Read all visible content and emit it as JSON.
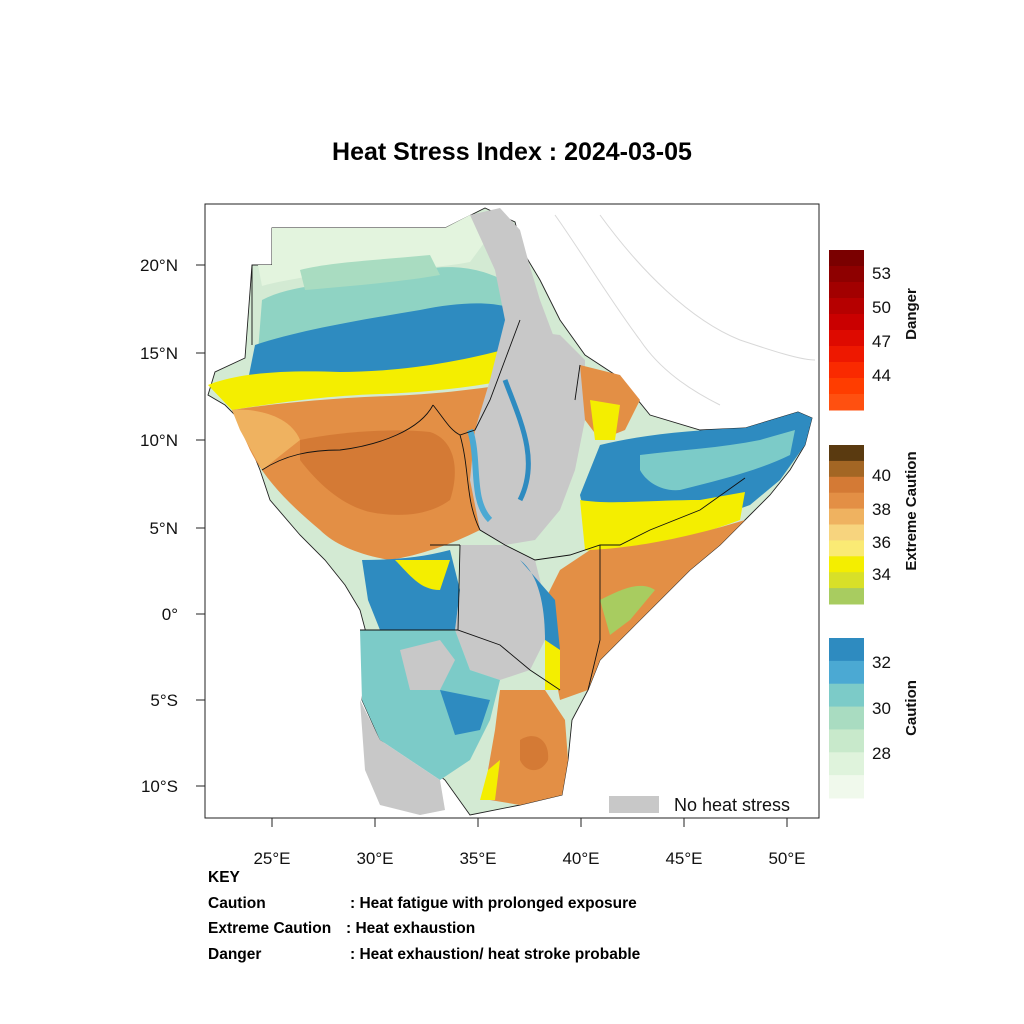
{
  "title": "Heat Stress Index : 2024-03-05",
  "map": {
    "lat_labels": [
      "20°N",
      "15°N",
      "10°N",
      "5°N",
      "0°",
      "5°S",
      "10°S"
    ],
    "lon_labels": [
      "25°E",
      "30°E",
      "35°E",
      "40°E",
      "45°E",
      "50°E"
    ],
    "legend_label": "No heat stress",
    "legend_color": "#c8c8c8"
  },
  "colorbars": [
    {
      "name": "Danger",
      "ticks": [
        "53",
        "50",
        "47",
        "44"
      ],
      "colors": [
        "#7a0000",
        "#8e0000",
        "#a20000",
        "#b60000",
        "#ca0000",
        "#de0a00",
        "#ee1800",
        "#fa2a00",
        "#ff3d00",
        "#ff5010"
      ]
    },
    {
      "name": "Extreme Caution",
      "ticks": [
        "40",
        "38",
        "36",
        "34"
      ],
      "colors": [
        "#5a3a10",
        "#a36624",
        "#d47a35",
        "#e38f45",
        "#efb260",
        "#f7d47e",
        "#faea74",
        "#f4ee00",
        "#d8e028",
        "#a8cc60"
      ]
    },
    {
      "name": "Caution",
      "ticks": [
        "32",
        "30",
        "28"
      ],
      "colors": [
        "#2e8bc0",
        "#4ba9d3",
        "#7ccbc8",
        "#a9dcc1",
        "#c8e9cb",
        "#dff3dc",
        "#f0f9ec"
      ]
    }
  ],
  "key": {
    "heading": "KEY",
    "rows": [
      {
        "term": "Caution",
        "desc": ": Heat fatigue with prolonged exposure"
      },
      {
        "term": "Extreme Caution",
        "desc": " : Heat exhaustion"
      },
      {
        "term": "Danger",
        "desc": ": Heat exhaustion/ heat stroke probable"
      }
    ]
  }
}
